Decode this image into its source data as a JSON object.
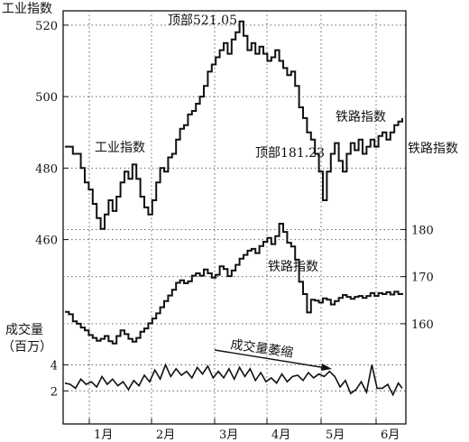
{
  "chart_data": {
    "type": "line",
    "grid": true,
    "x_months": [
      "1月",
      "2月",
      "3月",
      "4月",
      "5月",
      "6月"
    ],
    "left_axis": {
      "label": "工业指数",
      "ticks": [
        460,
        480,
        500,
        520
      ],
      "range": [
        445,
        523
      ]
    },
    "right_axis": {
      "label": "铁路指数",
      "ticks": [
        160,
        170,
        180
      ],
      "range": [
        155,
        200
      ]
    },
    "volume_axis": {
      "label_line1": "成交量",
      "label_line2": "（百万）",
      "ticks": [
        2,
        4
      ],
      "range": [
        0.5,
        5
      ]
    },
    "annotations": {
      "industrial_peak": "顶部521.05",
      "railroad_peak": "顶部181.23",
      "volume_shrink": "成交量萎缩",
      "industrial_series_left": "工业指数",
      "industrial_series_right": "铁路指数",
      "railroad_series": "铁路指数"
    },
    "series": [
      {
        "name": "工业指数",
        "axis": "left",
        "x": [
          0,
          0.3,
          0.6,
          0.9,
          1.2,
          1.5,
          1.8,
          2.1,
          2.4,
          2.7,
          3,
          3.3,
          3.6,
          3.9,
          4.2,
          4.5,
          4.8,
          5.1,
          5.4,
          5.7,
          6,
          6.3,
          6.6,
          6.9,
          7.2,
          7.5,
          7.8,
          8.1,
          8.4,
          8.7,
          9,
          9.3,
          9.6,
          9.9,
          10.2,
          10.5,
          10.8,
          11.1,
          11.4,
          11.7,
          12,
          12.3,
          12.6,
          12.9,
          13.2,
          13.5,
          13.8,
          14.1,
          14.4,
          14.7,
          15,
          15.3,
          15.6,
          15.9,
          16.2,
          16.5,
          16.8,
          17.1,
          17.4,
          17.7,
          18,
          18.3,
          18.6,
          18.9,
          19.2,
          19.5,
          19.8,
          20.1,
          20.4,
          20.7,
          21,
          21.3,
          21.6,
          21.9,
          22.2,
          22.5,
          22.8,
          23.1,
          23.4,
          23.7,
          24,
          24.3,
          24.6,
          24.9,
          25.2,
          25.5
        ],
        "values": [
          486,
          486,
          484,
          484,
          480,
          476,
          474,
          470,
          466,
          463,
          467,
          471,
          468,
          472,
          476,
          479,
          477,
          481,
          477,
          472,
          469,
          467,
          471,
          476,
          480,
          479,
          483,
          484,
          488,
          491,
          492,
          495,
          496,
          498,
          500,
          503,
          507,
          509,
          511,
          513,
          515,
          512,
          516,
          518,
          521.05,
          517,
          513,
          515,
          512,
          514,
          512,
          510,
          511,
          513,
          510,
          508,
          506,
          507,
          503,
          497,
          494,
          490,
          488,
          484,
          479,
          471,
          479,
          484,
          487,
          482,
          479,
          484,
          487,
          485,
          488,
          484,
          486,
          488,
          486,
          489,
          490,
          488,
          490,
          492,
          493,
          494
        ]
      },
      {
        "name": "铁路指数",
        "axis": "right",
        "x": [
          0,
          0.3,
          0.6,
          0.9,
          1.2,
          1.5,
          1.8,
          2.1,
          2.4,
          2.7,
          3,
          3.3,
          3.6,
          3.9,
          4.2,
          4.5,
          4.8,
          5.1,
          5.4,
          5.7,
          6,
          6.3,
          6.6,
          6.9,
          7.2,
          7.5,
          7.8,
          8.1,
          8.4,
          8.7,
          9,
          9.3,
          9.6,
          9.9,
          10.2,
          10.5,
          10.8,
          11.1,
          11.4,
          11.7,
          12,
          12.3,
          12.6,
          12.9,
          13.2,
          13.5,
          13.8,
          14.1,
          14.4,
          14.7,
          15,
          15.3,
          15.6,
          15.9,
          16.2,
          16.5,
          16.8,
          17.1,
          17.4,
          17.7,
          18,
          18.3,
          18.6,
          18.9,
          19.2,
          19.5,
          19.8,
          20.1,
          20.4,
          20.7,
          21,
          21.3,
          21.6,
          21.9,
          22.2,
          22.5,
          22.8,
          23.1,
          23.4,
          23.7,
          24,
          24.3,
          24.6,
          24.9,
          25.2,
          25.5
        ],
        "values": [
          162.5,
          162,
          160.5,
          160,
          159.2,
          158.6,
          157.6,
          157,
          156.4,
          156.8,
          157.4,
          156.3,
          155.8,
          157.4,
          158.6,
          157.8,
          156.8,
          156.2,
          157,
          158.3,
          159,
          160.1,
          161.1,
          162.2,
          163.5,
          164.8,
          166,
          167.2,
          168.7,
          169.2,
          168.6,
          169,
          170.2,
          170.7,
          170.2,
          171.5,
          170.7,
          169.8,
          170.4,
          172.2,
          171.6,
          170.1,
          171.3,
          172.5,
          173.8,
          174.6,
          175.5,
          175.9,
          175,
          176.5,
          177.4,
          178.2,
          176.9,
          178.6,
          181.23,
          179.5,
          177.2,
          176.4,
          173.6,
          168.9,
          166.3,
          162.4,
          165.1,
          164.9,
          164.5,
          165.4,
          165.1,
          164.1,
          164.8,
          165.5,
          166.1,
          165.7,
          165.3,
          165.7,
          165.9,
          165.5,
          165.9,
          166.5,
          165.9,
          166.5,
          166.3,
          166.7,
          166.2,
          166.8,
          166.3,
          166.5
        ]
      },
      {
        "name": "成交量",
        "axis": "volume",
        "x": [
          0,
          0.4,
          0.8,
          1.2,
          1.6,
          2,
          2.4,
          2.8,
          3.2,
          3.6,
          4,
          4.4,
          4.8,
          5.2,
          5.6,
          6,
          6.4,
          6.8,
          7.2,
          7.6,
          8,
          8.4,
          8.8,
          9.2,
          9.6,
          10,
          10.4,
          10.8,
          11.2,
          11.6,
          12,
          12.4,
          12.8,
          13.2,
          13.6,
          14,
          14.4,
          14.8,
          15.2,
          15.6,
          16,
          16.4,
          16.8,
          17.2,
          17.6,
          18,
          18.4,
          18.8,
          19.2,
          19.6,
          20,
          20.4,
          20.8,
          21.2,
          21.6,
          22,
          22.4,
          22.8,
          23.2,
          23.6,
          24,
          24.4,
          24.8,
          25.2,
          25.5
        ],
        "values": [
          2.6,
          2.5,
          2.2,
          2.9,
          2.5,
          2.7,
          2.3,
          3.1,
          2.5,
          2.9,
          2.4,
          2.7,
          2.1,
          2.8,
          2.4,
          3.2,
          2.7,
          3.6,
          2.9,
          4,
          3.1,
          3.7,
          3.2,
          3.5,
          3,
          3.8,
          3.3,
          3.9,
          3,
          3.5,
          3,
          3.7,
          2.9,
          3.8,
          3.1,
          3.7,
          2.8,
          3.4,
          2.7,
          3,
          2.6,
          3.3,
          2.7,
          3.1,
          3.2,
          2.8,
          3.4,
          3,
          3.3,
          3.1,
          3.5,
          3.1,
          2.3,
          2.8,
          1.8,
          2.1,
          2.7,
          1.9,
          4,
          2.2,
          2.2,
          2.5,
          1.7,
          2.6,
          2.2
        ]
      }
    ]
  }
}
